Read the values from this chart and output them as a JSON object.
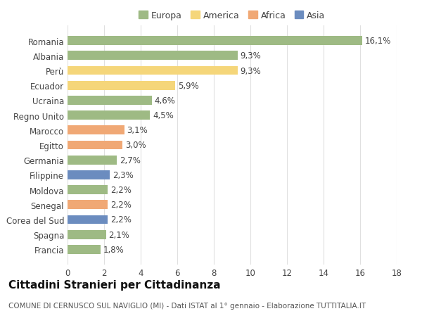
{
  "countries": [
    "Francia",
    "Spagna",
    "Corea del Sud",
    "Senegal",
    "Moldova",
    "Filippine",
    "Germania",
    "Egitto",
    "Marocco",
    "Regno Unito",
    "Ucraina",
    "Ecuador",
    "Perù",
    "Albania",
    "Romania"
  ],
  "values": [
    1.8,
    2.1,
    2.2,
    2.2,
    2.2,
    2.3,
    2.7,
    3.0,
    3.1,
    4.5,
    4.6,
    5.9,
    9.3,
    9.3,
    16.1
  ],
  "labels": [
    "1,8%",
    "2,1%",
    "2,2%",
    "2,2%",
    "2,2%",
    "2,3%",
    "2,7%",
    "3,0%",
    "3,1%",
    "4,5%",
    "4,6%",
    "5,9%",
    "9,3%",
    "9,3%",
    "16,1%"
  ],
  "continent": [
    "Europa",
    "Europa",
    "Asia",
    "Africa",
    "Europa",
    "Asia",
    "Europa",
    "Africa",
    "Africa",
    "Europa",
    "Europa",
    "America",
    "America",
    "Europa",
    "Europa"
  ],
  "colors": {
    "Europa": "#9eba84",
    "America": "#f5d67a",
    "Africa": "#f0a875",
    "Asia": "#6b8cbf"
  },
  "title": "Cittadini Stranieri per Cittadinanza",
  "subtitle": "COMUNE DI CERNUSCO SUL NAVIGLIO (MI) - Dati ISTAT al 1° gennaio - Elaborazione TUTTITALIA.IT",
  "xlim": [
    0,
    18
  ],
  "xticks": [
    0,
    2,
    4,
    6,
    8,
    10,
    12,
    14,
    16,
    18
  ],
  "background_color": "#ffffff",
  "grid_color": "#e0e0e0",
  "bar_height": 0.6,
  "label_fontsize": 8.5,
  "tick_fontsize": 8.5,
  "title_fontsize": 11,
  "subtitle_fontsize": 7.5,
  "legend_fontsize": 9
}
